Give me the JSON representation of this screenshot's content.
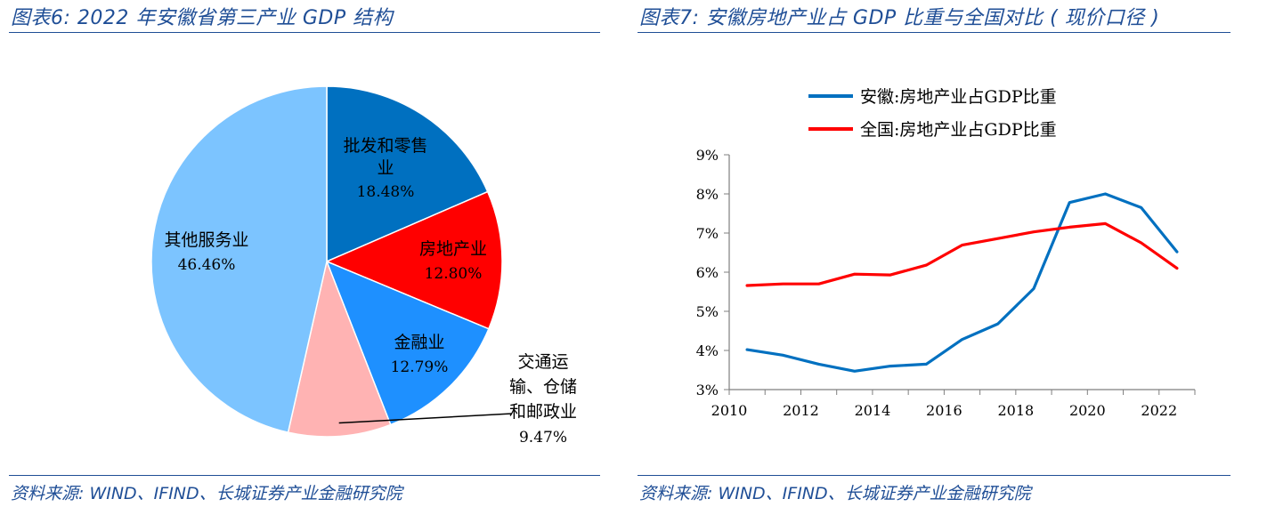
{
  "left_panel": {
    "title": "图表6:  2022 年安徽省第三产业 GDP 结构",
    "source": "资料来源:  WIND、IFIND、长城证券产业金融研究院"
  },
  "right_panel": {
    "title": "图表7:  安徽房地产业占 GDP 比重与全国对比 ( 现价口径 )",
    "source": "资料来源:  WIND、IFIND、长城证券产业金融研究院"
  },
  "chart_data": [
    {
      "type": "pie",
      "title": "2022 年安徽省第三产业 GDP 结构",
      "slices": [
        {
          "label_lines": [
            "批发和零售",
            "业"
          ],
          "value": 18.48,
          "value_label": "18.48%",
          "color": "#0070c0"
        },
        {
          "label_lines": [
            "房地产业"
          ],
          "value": 12.8,
          "value_label": "12.80%",
          "color": "#ff0000"
        },
        {
          "label_lines": [
            "金融业"
          ],
          "value": 12.79,
          "value_label": "12.79%",
          "color": "#1e90ff"
        },
        {
          "label_lines": [
            "交通运",
            "输、仓储",
            "和邮政业"
          ],
          "value": 9.47,
          "value_label": "9.47%",
          "color": "#ffb3b3"
        },
        {
          "label_lines": [
            "其他服务业"
          ],
          "value": 46.46,
          "value_label": "46.46%",
          "color": "#7cc4ff"
        }
      ]
    },
    {
      "type": "line",
      "title": "安徽房地产业占 GDP 比重与全国对比 ( 现价口径 )",
      "x": [
        2010,
        2011,
        2012,
        2013,
        2014,
        2015,
        2016,
        2017,
        2018,
        2019,
        2020,
        2021,
        2022
      ],
      "x_ticks": [
        "2010",
        "2012",
        "2014",
        "2016",
        "2018",
        "2020",
        "2022"
      ],
      "y_ticks": [
        "3%",
        "4%",
        "5%",
        "6%",
        "7%",
        "8%",
        "9%"
      ],
      "ylim": [
        3,
        9
      ],
      "legend_position": "top",
      "series": [
        {
          "name": "安徽:房地产业占GDP比重",
          "color": "#0070c0",
          "values": [
            4.02,
            3.88,
            3.65,
            3.47,
            3.6,
            3.65,
            4.28,
            4.68,
            5.58,
            7.78,
            8.0,
            7.65,
            6.52
          ]
        },
        {
          "name": "全国:房地产业占GDP比重",
          "color": "#ff0000",
          "values": [
            5.66,
            5.7,
            5.7,
            5.95,
            5.93,
            6.18,
            6.69,
            6.86,
            7.03,
            7.15,
            7.24,
            6.75,
            6.1
          ]
        }
      ]
    }
  ]
}
